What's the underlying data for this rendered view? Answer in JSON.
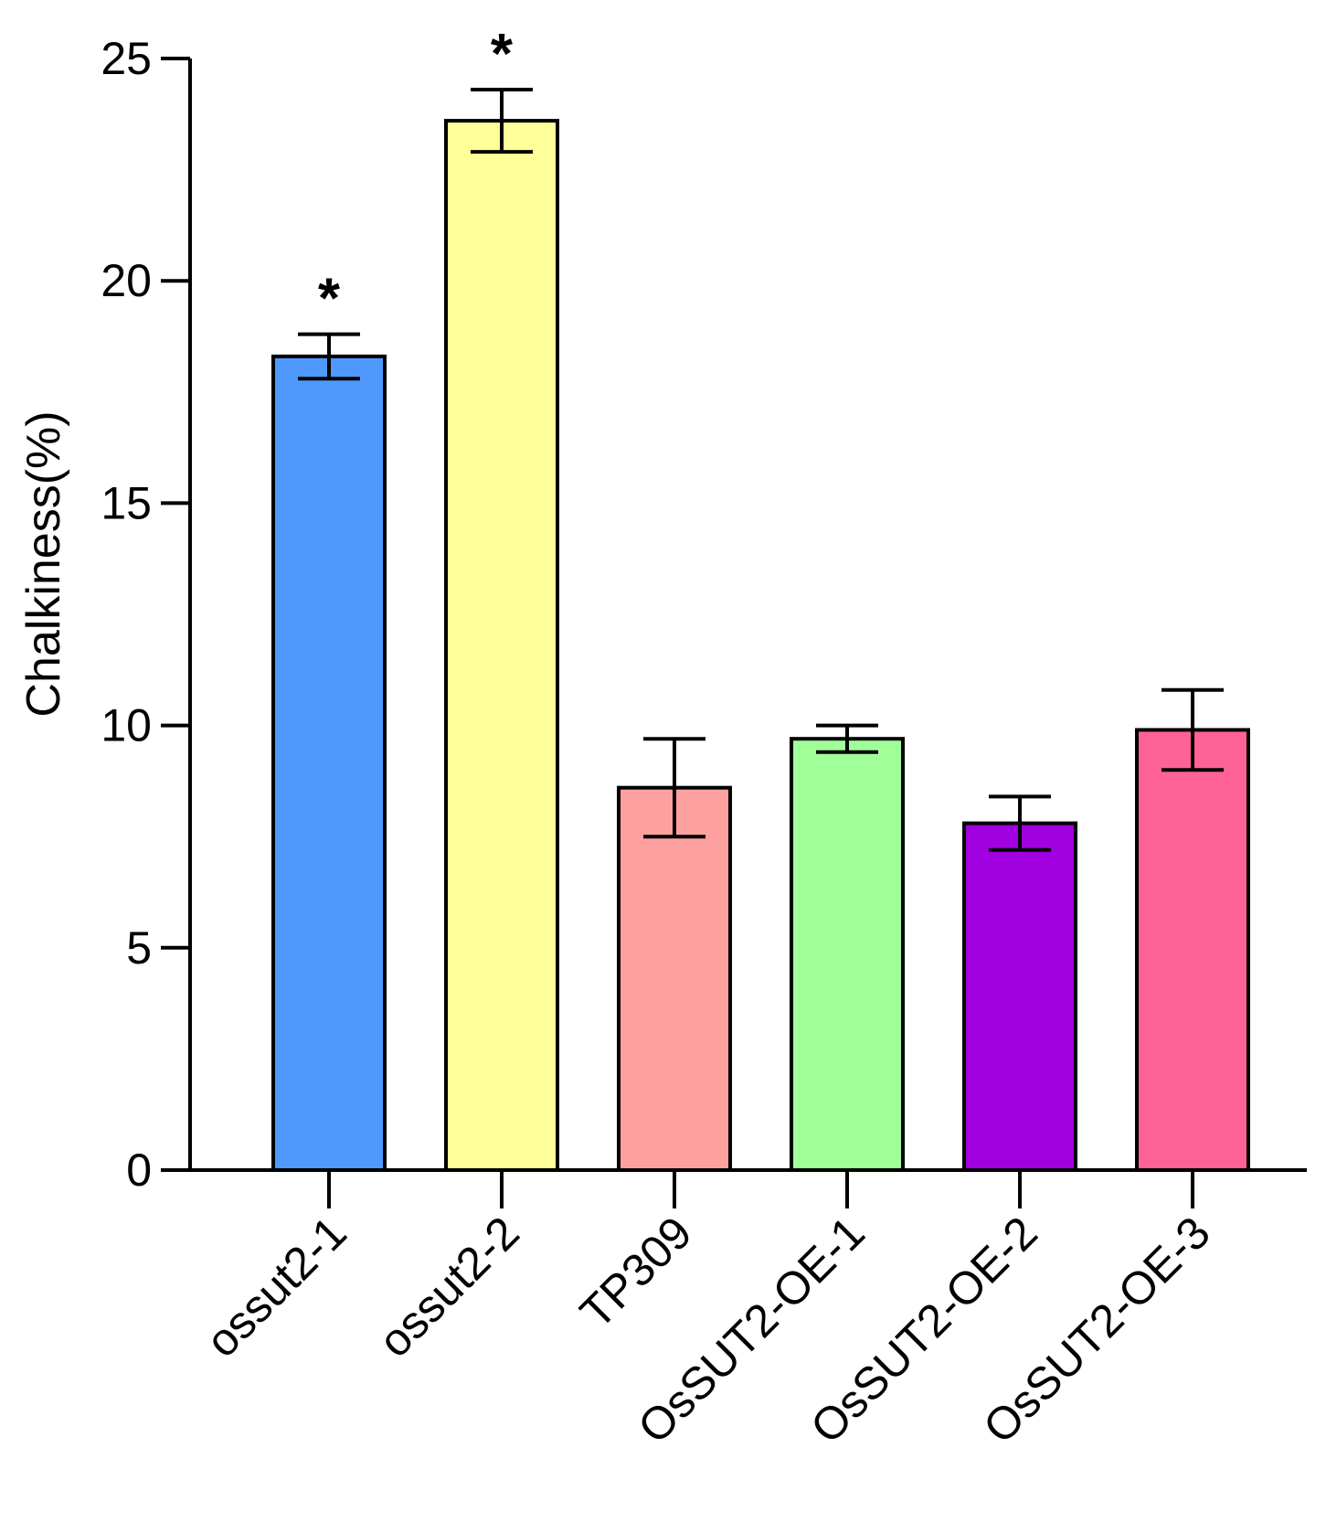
{
  "chart_data": {
    "type": "bar",
    "title": "",
    "xlabel": "",
    "ylabel": "Chalkiness(%)",
    "ylim": [
      0,
      25
    ],
    "yticks": [
      "0",
      "5",
      "10",
      "15",
      "20",
      "25"
    ],
    "grid": false,
    "legend": "none",
    "categories": [
      "ossut2-1",
      "ossut2-2",
      "TP309",
      "OsSUT2-OE-1",
      "OsSUT2-OE-2",
      "OsSUT2-OE-3"
    ],
    "values": [
      18.3,
      23.6,
      8.6,
      9.7,
      7.8,
      9.9
    ],
    "errors_lower": [
      17.8,
      22.9,
      7.5,
      9.4,
      7.2,
      9.0
    ],
    "errors_upper": [
      18.8,
      24.3,
      9.7,
      10.0,
      8.4,
      10.8
    ],
    "significance": [
      "*",
      "*",
      "",
      "",
      "",
      ""
    ],
    "colors": [
      "#4f99fc",
      "#ffff99",
      "#fca19f",
      "#a0ff99",
      "#a100e0",
      "#ff6296"
    ]
  }
}
